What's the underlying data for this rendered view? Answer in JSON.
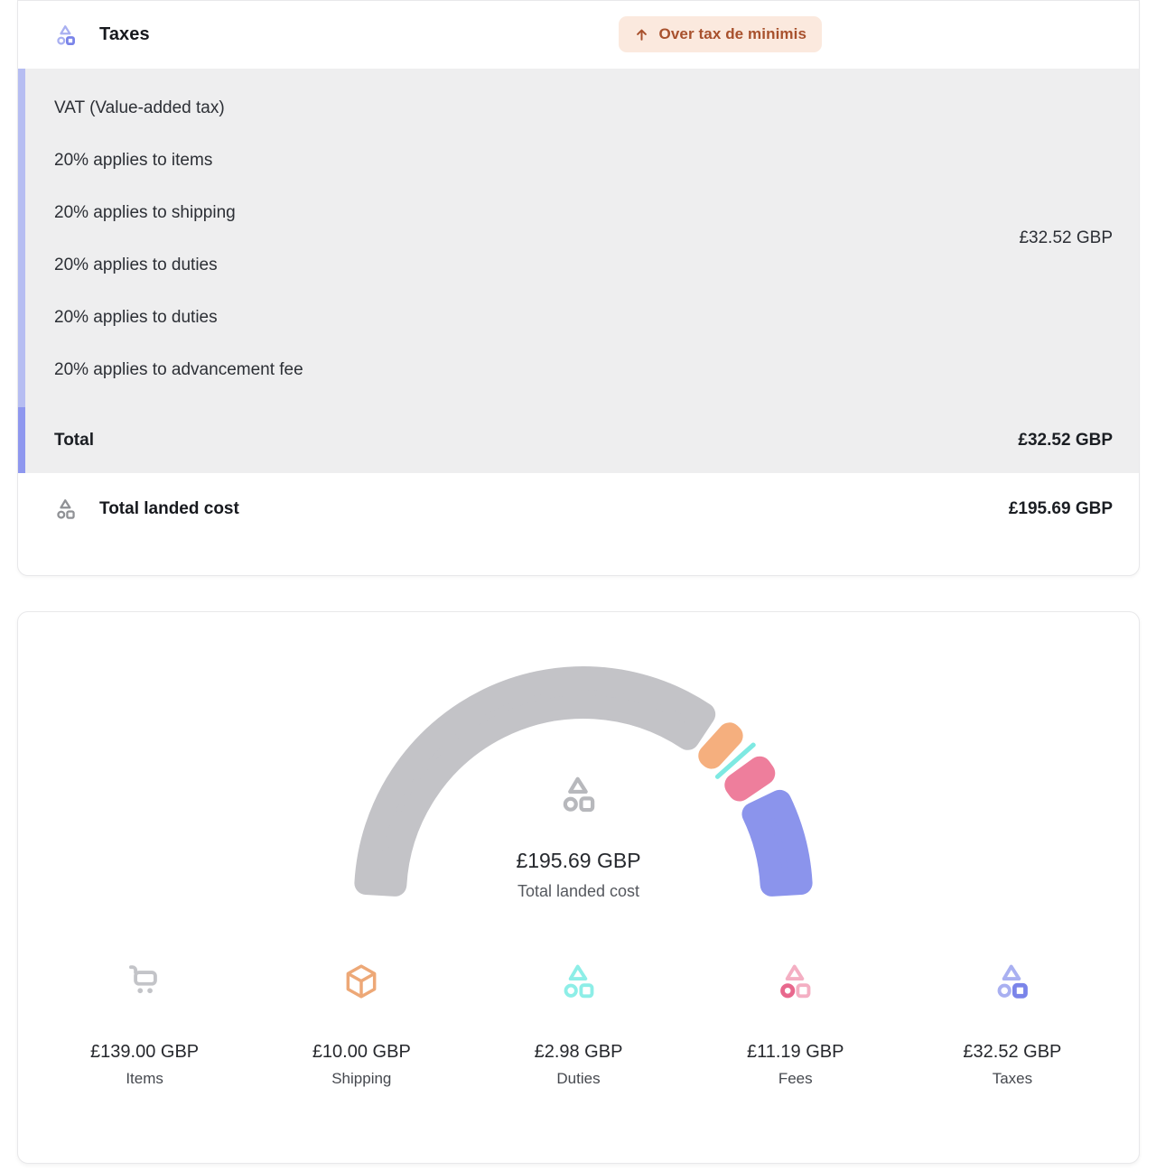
{
  "colors": {
    "card_border": "#e8e8ea",
    "panel_bg": "#eeeeef",
    "accent_bar_light": "#b6bdf2",
    "accent_bar_dark": "#8e97ef",
    "badge_bg": "#fbe9de",
    "badge_text": "#a8512d",
    "icon_cart": "#c3c4c8",
    "icon_package": "#eda877",
    "icon_duties_light": "#8deee7",
    "icon_duties_strong": "#8deee7",
    "icon_fees_light": "#f4afc3",
    "icon_fees_strong": "#e8688d",
    "icon_taxes_light": "#a9b0f1",
    "icon_taxes_strong": "#7a84e9",
    "icon_gray_small": "#8f9195",
    "icon_gauge_center": "#b7b8bc"
  },
  "taxes_card": {
    "title": "Taxes",
    "badge": {
      "label": "Over tax de minimis",
      "icon": "arrow-up-icon"
    },
    "breakdown": {
      "heading": "VAT (Value-added tax)",
      "lines": [
        "20% applies to items",
        "20% applies to shipping",
        "20% applies to duties",
        "20% applies to duties",
        "20% applies to advancement fee"
      ],
      "amount": "£32.52 GBP",
      "total_label": "Total",
      "total_amount": "£32.52 GBP"
    },
    "total_landed_cost": {
      "label": "Total landed cost",
      "amount": "£195.69 GBP"
    }
  },
  "chart_data": {
    "type": "pie",
    "variant": "half-donut-gauge",
    "unit": "GBP",
    "total": 195.69,
    "center_value": "£195.69 GBP",
    "center_label": "Total landed cost",
    "legend_position": "bottom",
    "segments": [
      {
        "label": "Items",
        "value": 139.0,
        "display": "£139.00 GBP",
        "color": "#c3c3c7",
        "icon": "cart-icon"
      },
      {
        "label": "Shipping",
        "value": 10.0,
        "display": "£10.00 GBP",
        "color": "#f5af7e",
        "icon": "package-icon"
      },
      {
        "label": "Duties",
        "value": 2.98,
        "display": "£2.98 GBP",
        "color": "#7ee9e2",
        "icon": "duties-shapes-icon"
      },
      {
        "label": "Fees",
        "value": 11.19,
        "display": "£11.19 GBP",
        "color": "#ee7e9c",
        "icon": "fees-shapes-icon"
      },
      {
        "label": "Taxes",
        "value": 32.52,
        "display": "£32.52 GBP",
        "color": "#8b94ec",
        "icon": "taxes-shapes-icon"
      }
    ]
  }
}
